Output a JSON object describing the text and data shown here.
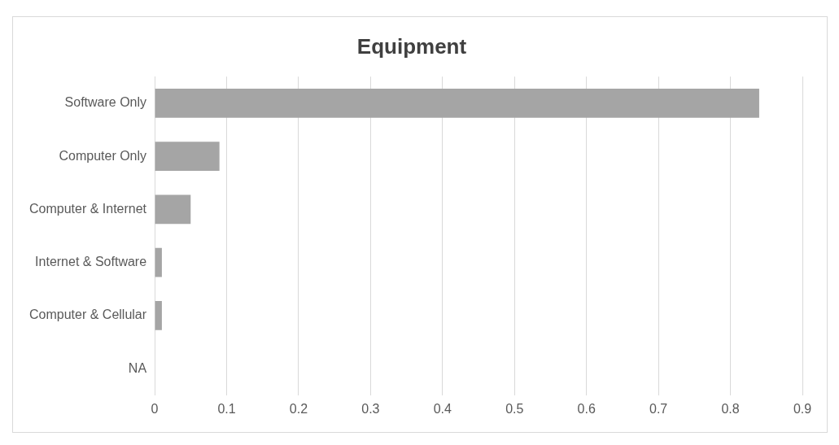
{
  "chart_data": {
    "type": "bar",
    "orientation": "horizontal",
    "title": "Equipment",
    "categories": [
      "Software Only",
      "Computer Only",
      "Computer & Internet",
      "Internet & Software",
      "Computer & Cellular",
      "NA"
    ],
    "values": [
      0.84,
      0.09,
      0.05,
      0.01,
      0.01,
      0
    ],
    "color": "#a5a5a5",
    "xlim": [
      0,
      0.9
    ],
    "xticks": [
      0,
      0.1,
      0.2,
      0.3,
      0.4,
      0.5,
      0.6,
      0.7,
      0.8,
      0.9
    ],
    "grid": "x"
  }
}
